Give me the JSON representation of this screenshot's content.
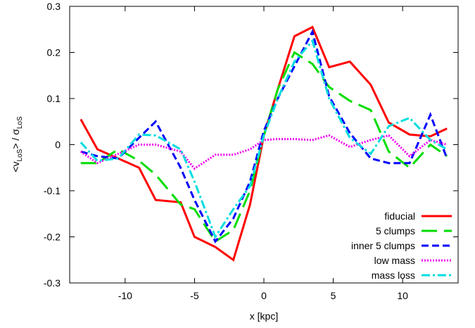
{
  "chart_data": {
    "type": "line",
    "xlabel": "x [kpc]",
    "ylabel": {
      "main": "<v",
      "sub1": "LoS",
      "mid": "> / σ",
      "sub2": "LoS"
    },
    "xlim": [
      -14,
      14
    ],
    "ylim": [
      -0.3,
      0.3
    ],
    "x_ticks": [
      -10,
      -5,
      0,
      5,
      10
    ],
    "x_tick_labels": [
      "-10",
      "-5",
      "0",
      "5",
      "10"
    ],
    "y_ticks": [
      -0.3,
      -0.2,
      -0.1,
      0,
      0.1,
      0.2,
      0.3
    ],
    "y_tick_labels": [
      "-0.3",
      "-0.2",
      "-0.1",
      "0",
      "0.1",
      "0.2",
      "0.3"
    ],
    "grid": false,
    "legend_position": "bottom-right",
    "series": [
      {
        "name": "fiducial",
        "color": "#ff0000",
        "dash": "",
        "x": [
          -13.2,
          -12.0,
          -10.5,
          -9.0,
          -7.8,
          -6.0,
          -5.0,
          -3.5,
          -2.2,
          -1.0,
          0.0,
          1.0,
          2.2,
          3.5,
          4.7,
          6.2,
          7.7,
          9.0,
          10.5,
          12.0,
          13.2
        ],
        "y": [
          0.055,
          -0.01,
          -0.03,
          -0.05,
          -0.12,
          -0.125,
          -0.2,
          -0.222,
          -0.25,
          -0.13,
          0.02,
          0.12,
          0.235,
          0.255,
          0.168,
          0.18,
          0.13,
          0.048,
          0.022,
          0.018,
          0.035
        ]
      },
      {
        "name": "5 clumps",
        "color": "#00dd00",
        "dash": "22,10",
        "x": [
          -13.2,
          -12.0,
          -10.5,
          -9.0,
          -7.8,
          -6.0,
          -5.0,
          -3.5,
          -2.2,
          -1.0,
          0.0,
          1.0,
          2.2,
          3.5,
          4.7,
          6.2,
          7.7,
          9.0,
          10.5,
          12.0,
          13.2
        ],
        "y": [
          -0.04,
          -0.04,
          -0.01,
          -0.035,
          -0.065,
          -0.13,
          -0.14,
          -0.21,
          -0.185,
          -0.1,
          0.02,
          0.12,
          0.2,
          0.175,
          0.125,
          0.095,
          0.075,
          -0.015,
          -0.05,
          0.0,
          -0.025
        ]
      },
      {
        "name": "inner 5 clumps",
        "color": "#0000ff",
        "dash": "10,5",
        "x": [
          -13.2,
          -12.0,
          -10.5,
          -9.0,
          -7.8,
          -6.0,
          -5.0,
          -3.5,
          -2.2,
          -1.0,
          0.0,
          1.0,
          2.2,
          3.5,
          4.7,
          6.2,
          7.7,
          9.0,
          10.5,
          12.0,
          13.2
        ],
        "y": [
          -0.015,
          -0.025,
          -0.03,
          0.015,
          0.05,
          -0.05,
          -0.12,
          -0.21,
          -0.16,
          -0.08,
          0.03,
          0.1,
          0.17,
          0.245,
          0.105,
          0.025,
          -0.03,
          -0.04,
          -0.04,
          0.065,
          -0.03
        ]
      },
      {
        "name": "low mass",
        "color": "#ee00ee",
        "dash": "2,2",
        "x": [
          -13.2,
          -12.0,
          -10.5,
          -9.0,
          -7.8,
          -6.0,
          -5.0,
          -3.5,
          -2.2,
          -1.0,
          0.0,
          1.0,
          2.2,
          3.5,
          4.7,
          6.2,
          7.7,
          9.0,
          10.5,
          12.0,
          13.2
        ],
        "y": [
          -0.015,
          -0.04,
          -0.02,
          0.0,
          0.0,
          -0.015,
          -0.052,
          -0.022,
          -0.022,
          -0.01,
          0.01,
          0.012,
          0.012,
          0.01,
          0.02,
          -0.005,
          0.01,
          0.02,
          -0.025,
          0.01,
          0.0
        ]
      },
      {
        "name": "mass loss",
        "color": "#00dddd",
        "dash": "12,4,3,4",
        "x": [
          -13.2,
          -12.0,
          -10.5,
          -9.0,
          -7.8,
          -6.0,
          -5.0,
          -3.5,
          -2.2,
          -1.0,
          0.0,
          1.0,
          2.2,
          3.5,
          4.7,
          6.2,
          7.7,
          9.0,
          10.5,
          12.0,
          13.2
        ],
        "y": [
          0.005,
          -0.035,
          -0.03,
          0.022,
          0.02,
          -0.01,
          -0.08,
          -0.2,
          -0.14,
          -0.09,
          0.02,
          0.1,
          0.18,
          0.225,
          0.1,
          0.015,
          -0.02,
          0.04,
          0.058,
          0.01,
          -0.01
        ]
      }
    ]
  }
}
